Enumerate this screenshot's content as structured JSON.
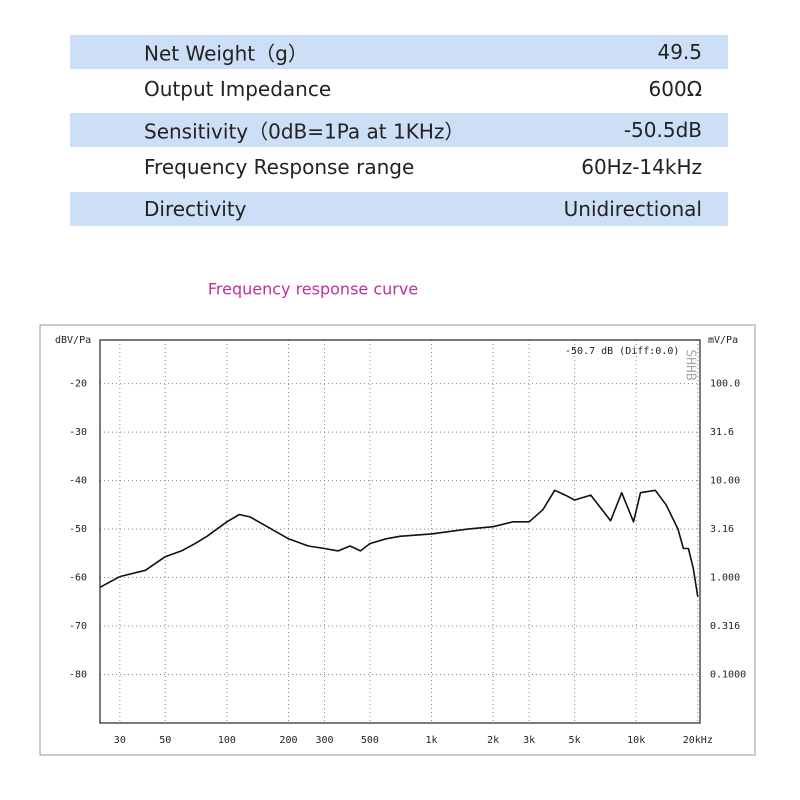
{
  "table": {
    "rows": [
      [
        "Net Weight（g）",
        "49.5"
      ],
      [
        "Output Impedance",
        "600Ω"
      ],
      [
        "Sensitivity（0dB=1Pa at 1KHz）",
        "-50.5dB"
      ],
      [
        "Frequency Response range",
        "60Hz-14kHz"
      ],
      [
        "Directivity",
        "Unidirectional"
      ]
    ]
  },
  "chart_data": {
    "type": "line",
    "title": "Frequency response curve",
    "ylabel": "dBV/Pa",
    "y2label": "mV/Pa",
    "annotation": "-50.7 dB (Diff:0.0)",
    "watermark": "SHHB",
    "color": "#111111",
    "xscale": "log",
    "y2scale": "log",
    "grid": true,
    "x": [
      24,
      30,
      40,
      50,
      60,
      70,
      80,
      100,
      115,
      130,
      150,
      200,
      250,
      300,
      350,
      400,
      450,
      500,
      600,
      700,
      1000,
      1500,
      2000,
      2500,
      3000,
      3500,
      4000,
      4500,
      5000,
      6000,
      7500,
      8500,
      9700,
      10500,
      12400,
      14000,
      16000,
      17000,
      18000,
      19000,
      20000
    ],
    "values": [
      -62,
      -59.8,
      -58.5,
      -55.7,
      -54.5,
      -53,
      -51.5,
      -48.5,
      -47,
      -47.5,
      -49,
      -52,
      -53.5,
      -54,
      -54.5,
      -53.5,
      -54.5,
      -53,
      -52,
      -51.5,
      -51,
      -50,
      -49.5,
      -48.5,
      -48.5,
      -46,
      -42,
      -43,
      -44,
      -43,
      -48.3,
      -42.5,
      -48.5,
      -42.5,
      -42,
      -45,
      -50,
      -54,
      -54,
      -58,
      -64
    ],
    "xlim": [
      24,
      20500
    ],
    "xticks": [
      30,
      50,
      100,
      200,
      300,
      500,
      {
        "value": 1000,
        "label": "1k"
      },
      {
        "value": 2000,
        "label": "2k"
      },
      {
        "value": 3000,
        "label": "3k"
      },
      {
        "value": 5000,
        "label": "5k"
      },
      {
        "value": 10000,
        "label": "10k"
      },
      {
        "value": 20000,
        "label": "20kHz"
      }
    ],
    "ylim": [
      -90,
      -11
    ],
    "yticks": [
      -20,
      -30,
      -40,
      -50,
      -60,
      -70,
      -80
    ],
    "y2lim": [
      0.0316,
      281.8
    ],
    "y2ticks": [
      {
        "value": 100,
        "label": "100.0"
      },
      31.6,
      {
        "value": 10,
        "label": "10.00"
      },
      3.16,
      {
        "value": 1,
        "label": "1.000"
      },
      0.316,
      {
        "value": 0.1,
        "label": "0.1000"
      }
    ]
  }
}
